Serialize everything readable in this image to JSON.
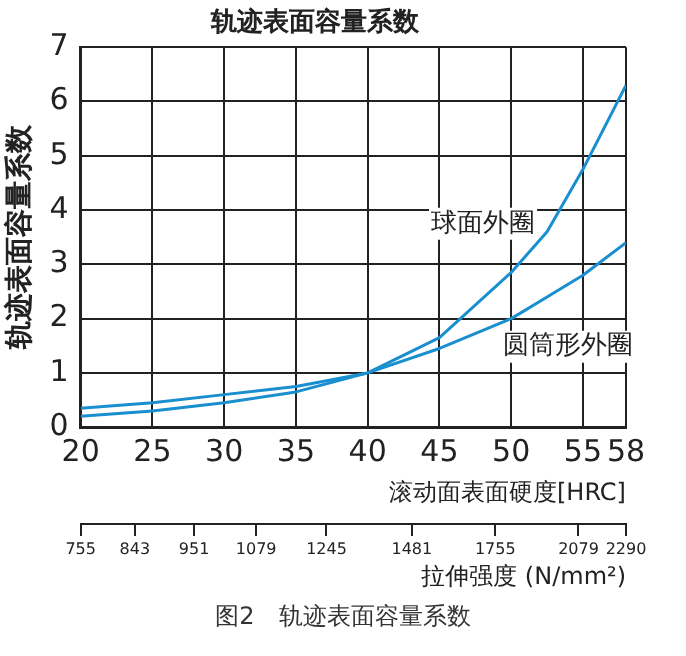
{
  "chart_data": {
    "type": "line",
    "title": "轨迹表面容量系数",
    "xlabel": "滚动面表面硬度[HRC]",
    "ylabel": "轨迹表面容量系数",
    "x2label": "拉伸强度 (N/mm²)",
    "x": [
      20,
      25,
      30,
      35,
      40,
      45,
      50,
      52.5,
      55,
      58
    ],
    "series": [
      {
        "name": "球面外圈",
        "color": "#1a8fd0",
        "values": [
          0.2,
          0.3,
          0.45,
          0.65,
          1.0,
          1.65,
          2.85,
          3.6,
          4.75,
          6.3
        ]
      },
      {
        "name": "圆筒形外圈",
        "color": "#1a8fd0",
        "values": [
          0.35,
          0.45,
          0.6,
          0.75,
          1.0,
          1.45,
          2.0,
          2.4,
          2.8,
          3.4
        ]
      }
    ],
    "xlim": [
      20,
      58
    ],
    "xticks": [
      20,
      25,
      30,
      35,
      40,
      45,
      50,
      55,
      58
    ],
    "x2lim": [
      755,
      2290
    ],
    "x2ticks": [
      755,
      843,
      951,
      1079,
      1245,
      1481,
      1755,
      2079,
      2290
    ],
    "ylim": [
      0,
      7
    ],
    "yticks": [
      0,
      1,
      2,
      3,
      4,
      5,
      6,
      7
    ],
    "log": "x2",
    "grid": true,
    "legend": false,
    "marker": "none",
    "line_style": "solid",
    "annotations": [
      "图2　轨迹表面容量系数"
    ]
  }
}
